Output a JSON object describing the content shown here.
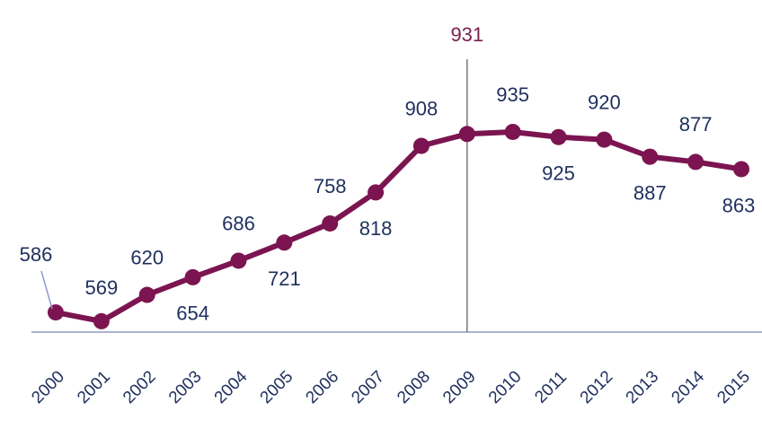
{
  "chart_data": {
    "type": "line",
    "categories": [
      "2000",
      "2001",
      "2002",
      "2003",
      "2004",
      "2005",
      "2006",
      "2007",
      "2008",
      "2009",
      "2010",
      "2011",
      "2012",
      "2013",
      "2014",
      "2015"
    ],
    "values": [
      586,
      569,
      620,
      654,
      686,
      721,
      758,
      818,
      908,
      931,
      935,
      925,
      920,
      887,
      877,
      863
    ],
    "color": "#7b1450",
    "highlight": "2009",
    "ylim": [
      548,
      1190
    ]
  }
}
